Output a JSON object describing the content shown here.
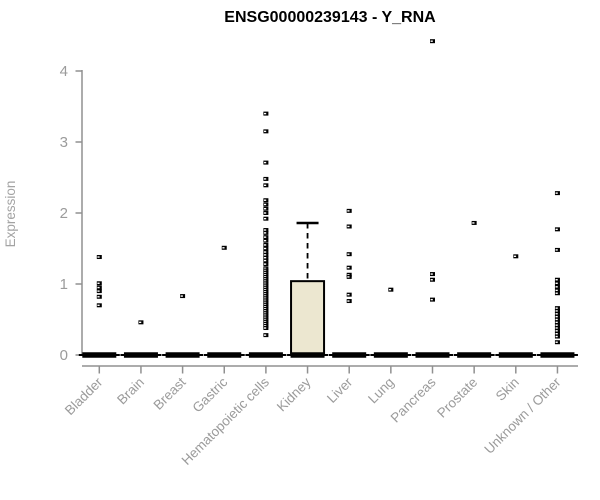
{
  "chart_data": {
    "type": "boxplot",
    "title": "ENSG00000239143 - Y_RNA",
    "ylabel": "Expression",
    "xlabel": "",
    "ylim": [
      0,
      4
    ],
    "yticks": [
      0,
      1,
      2,
      3,
      4
    ],
    "grid": false,
    "legend": "none",
    "categories": [
      "Bladder",
      "Brain",
      "Breast",
      "Gastric",
      "Hematopoietic cells",
      "Kidney",
      "Liver",
      "Lung",
      "Pancreas",
      "Prostate",
      "Skin",
      "Unknown / Other"
    ],
    "boxes": [
      {
        "category": "Bladder",
        "median": 0,
        "q1": 0,
        "q3": 0,
        "whisker_low": 0,
        "whisker_high": 0,
        "outliers": [
          1.38,
          1.01,
          0.95,
          0.9,
          0.82,
          0.7
        ]
      },
      {
        "category": "Brain",
        "median": 0,
        "q1": 0,
        "q3": 0,
        "whisker_low": 0,
        "whisker_high": 0,
        "outliers": [
          0.46
        ]
      },
      {
        "category": "Breast",
        "median": 0,
        "q1": 0,
        "q3": 0,
        "whisker_low": 0,
        "whisker_high": 0,
        "outliers": [
          0.83
        ]
      },
      {
        "category": "Gastric",
        "median": 0,
        "q1": 0,
        "q3": 0,
        "whisker_low": 0,
        "whisker_high": 0,
        "outliers": [
          1.51
        ]
      },
      {
        "category": "Hematopoietic cells",
        "median": 0,
        "q1": 0,
        "q3": 0,
        "whisker_low": 0,
        "whisker_high": 0,
        "outliers": [
          3.4,
          3.15,
          2.71,
          2.48,
          2.39,
          2.18,
          2.12,
          2.06,
          2.0,
          1.92,
          1.76,
          1.72,
          1.66,
          1.61,
          1.55,
          1.5,
          1.45,
          1.41,
          1.37,
          1.33,
          1.28,
          1.22,
          1.19,
          1.16,
          1.13,
          1.1,
          1.07,
          1.04,
          1.01,
          0.98,
          0.95,
          0.92,
          0.89,
          0.86,
          0.83,
          0.8,
          0.77,
          0.74,
          0.71,
          0.68,
          0.65,
          0.62,
          0.59,
          0.56,
          0.53,
          0.5,
          0.47,
          0.44,
          0.41,
          0.38,
          0.28
        ]
      },
      {
        "category": "Kidney",
        "median": 0,
        "q1": 0,
        "q3": 1.04,
        "whisker_low": 0,
        "whisker_high": 1.86,
        "outliers": []
      },
      {
        "category": "Liver",
        "median": 0,
        "q1": 0,
        "q3": 0,
        "whisker_low": 0,
        "whisker_high": 0,
        "outliers": [
          2.03,
          1.81,
          1.42,
          1.23,
          1.13,
          1.1,
          0.85,
          0.76
        ]
      },
      {
        "category": "Lung",
        "median": 0,
        "q1": 0,
        "q3": 0,
        "whisker_low": 0,
        "whisker_high": 0,
        "outliers": [
          0.92
        ]
      },
      {
        "category": "Pancreas",
        "median": 0,
        "q1": 0,
        "q3": 0,
        "whisker_low": 0,
        "whisker_high": 0,
        "outliers": [
          4.42,
          1.14,
          1.06,
          0.78
        ]
      },
      {
        "category": "Prostate",
        "median": 0,
        "q1": 0,
        "q3": 0,
        "whisker_low": 0,
        "whisker_high": 0,
        "outliers": [
          1.86
        ]
      },
      {
        "category": "Skin",
        "median": 0,
        "q1": 0,
        "q3": 0,
        "whisker_low": 0,
        "whisker_high": 0,
        "outliers": [
          1.39
        ]
      },
      {
        "category": "Unknown / Other",
        "median": 0,
        "q1": 0,
        "q3": 0,
        "whisker_low": 0,
        "whisker_high": 0,
        "outliers": [
          2.28,
          1.77,
          1.48,
          1.06,
          1.01,
          0.96,
          0.91,
          0.87,
          0.66,
          0.62,
          0.58,
          0.54,
          0.5,
          0.46,
          0.42,
          0.38,
          0.34,
          0.3,
          0.26,
          0.18
        ]
      }
    ],
    "colors": {
      "box_fill": "#ece7d0",
      "box_stroke": "#000000",
      "point": "#000000",
      "axis": "#909090",
      "tick_label": "#9b9b9b",
      "title": "#000000"
    }
  }
}
